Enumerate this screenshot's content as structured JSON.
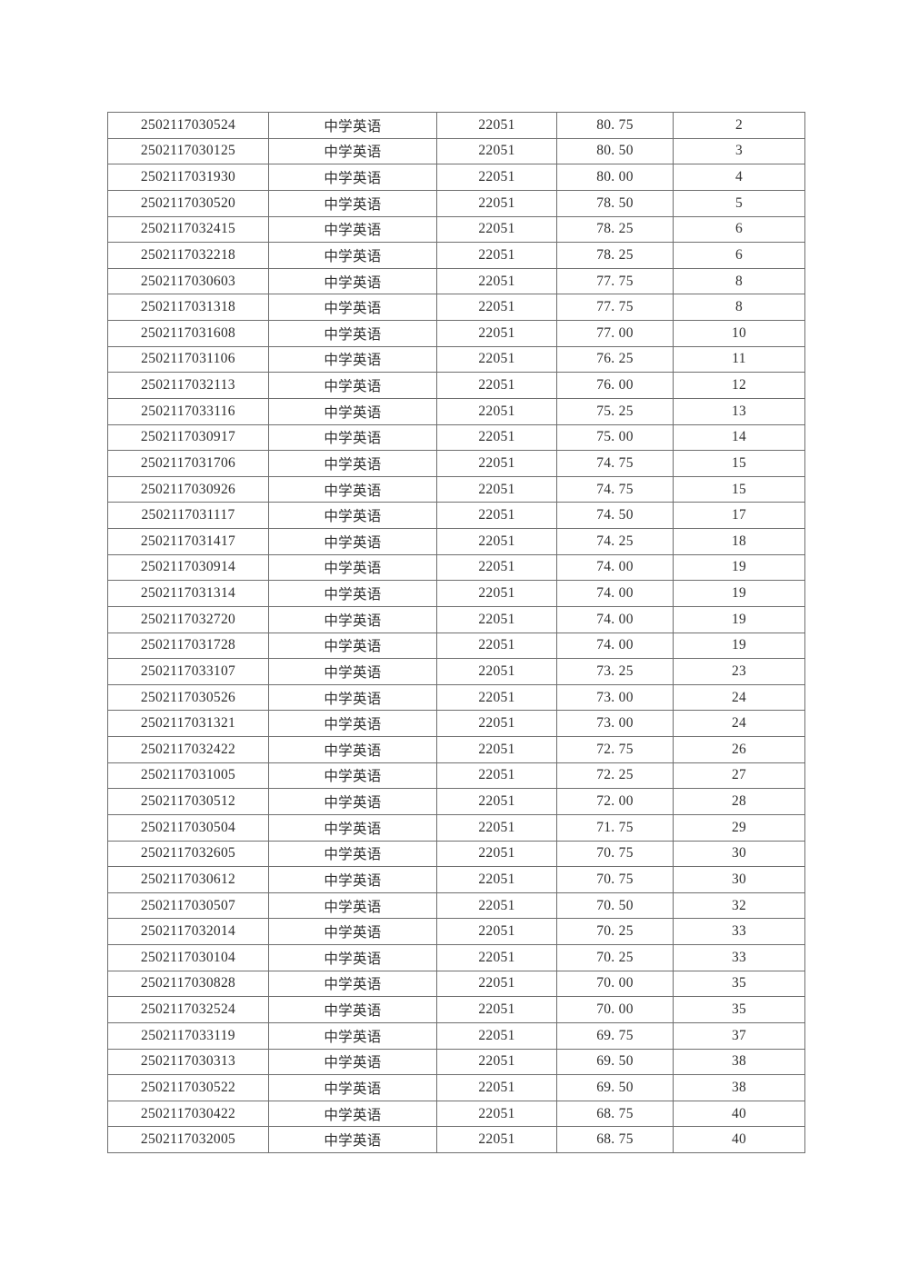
{
  "page": {
    "background_color": "#ffffff",
    "table_border_color": "#6e6e6e",
    "table_text_color": "#2e2e2e"
  },
  "table": {
    "rows": [
      {
        "id": "2502117030524",
        "subject": "中学英语",
        "code": "22051",
        "score": "80. 75",
        "rank": "2"
      },
      {
        "id": "2502117030125",
        "subject": "中学英语",
        "code": "22051",
        "score": "80. 50",
        "rank": "3"
      },
      {
        "id": "2502117031930",
        "subject": "中学英语",
        "code": "22051",
        "score": "80. 00",
        "rank": "4"
      },
      {
        "id": "2502117030520",
        "subject": "中学英语",
        "code": "22051",
        "score": "78. 50",
        "rank": "5"
      },
      {
        "id": "2502117032415",
        "subject": "中学英语",
        "code": "22051",
        "score": "78. 25",
        "rank": "6"
      },
      {
        "id": "2502117032218",
        "subject": "中学英语",
        "code": "22051",
        "score": "78. 25",
        "rank": "6"
      },
      {
        "id": "2502117030603",
        "subject": "中学英语",
        "code": "22051",
        "score": "77. 75",
        "rank": "8"
      },
      {
        "id": "2502117031318",
        "subject": "中学英语",
        "code": "22051",
        "score": "77. 75",
        "rank": "8"
      },
      {
        "id": "2502117031608",
        "subject": "中学英语",
        "code": "22051",
        "score": "77. 00",
        "rank": "10"
      },
      {
        "id": "2502117031106",
        "subject": "中学英语",
        "code": "22051",
        "score": "76. 25",
        "rank": "11"
      },
      {
        "id": "2502117032113",
        "subject": "中学英语",
        "code": "22051",
        "score": "76. 00",
        "rank": "12"
      },
      {
        "id": "2502117033116",
        "subject": "中学英语",
        "code": "22051",
        "score": "75. 25",
        "rank": "13"
      },
      {
        "id": "2502117030917",
        "subject": "中学英语",
        "code": "22051",
        "score": "75. 00",
        "rank": "14"
      },
      {
        "id": "2502117031706",
        "subject": "中学英语",
        "code": "22051",
        "score": "74. 75",
        "rank": "15"
      },
      {
        "id": "2502117030926",
        "subject": "中学英语",
        "code": "22051",
        "score": "74. 75",
        "rank": "15"
      },
      {
        "id": "2502117031117",
        "subject": "中学英语",
        "code": "22051",
        "score": "74. 50",
        "rank": "17"
      },
      {
        "id": "2502117031417",
        "subject": "中学英语",
        "code": "22051",
        "score": "74. 25",
        "rank": "18"
      },
      {
        "id": "2502117030914",
        "subject": "中学英语",
        "code": "22051",
        "score": "74. 00",
        "rank": "19"
      },
      {
        "id": "2502117031314",
        "subject": "中学英语",
        "code": "22051",
        "score": "74. 00",
        "rank": "19"
      },
      {
        "id": "2502117032720",
        "subject": "中学英语",
        "code": "22051",
        "score": "74. 00",
        "rank": "19"
      },
      {
        "id": "2502117031728",
        "subject": "中学英语",
        "code": "22051",
        "score": "74. 00",
        "rank": "19"
      },
      {
        "id": "2502117033107",
        "subject": "中学英语",
        "code": "22051",
        "score": "73. 25",
        "rank": "23"
      },
      {
        "id": "2502117030526",
        "subject": "中学英语",
        "code": "22051",
        "score": "73. 00",
        "rank": "24"
      },
      {
        "id": "2502117031321",
        "subject": "中学英语",
        "code": "22051",
        "score": "73. 00",
        "rank": "24"
      },
      {
        "id": "2502117032422",
        "subject": "中学英语",
        "code": "22051",
        "score": "72. 75",
        "rank": "26"
      },
      {
        "id": "2502117031005",
        "subject": "中学英语",
        "code": "22051",
        "score": "72. 25",
        "rank": "27"
      },
      {
        "id": "2502117030512",
        "subject": "中学英语",
        "code": "22051",
        "score": "72. 00",
        "rank": "28"
      },
      {
        "id": "2502117030504",
        "subject": "中学英语",
        "code": "22051",
        "score": "71. 75",
        "rank": "29"
      },
      {
        "id": "2502117032605",
        "subject": "中学英语",
        "code": "22051",
        "score": "70. 75",
        "rank": "30"
      },
      {
        "id": "2502117030612",
        "subject": "中学英语",
        "code": "22051",
        "score": "70. 75",
        "rank": "30"
      },
      {
        "id": "2502117030507",
        "subject": "中学英语",
        "code": "22051",
        "score": "70. 50",
        "rank": "32"
      },
      {
        "id": "2502117032014",
        "subject": "中学英语",
        "code": "22051",
        "score": "70. 25",
        "rank": "33"
      },
      {
        "id": "2502117030104",
        "subject": "中学英语",
        "code": "22051",
        "score": "70. 25",
        "rank": "33"
      },
      {
        "id": "2502117030828",
        "subject": "中学英语",
        "code": "22051",
        "score": "70. 00",
        "rank": "35"
      },
      {
        "id": "2502117032524",
        "subject": "中学英语",
        "code": "22051",
        "score": "70. 00",
        "rank": "35"
      },
      {
        "id": "2502117033119",
        "subject": "中学英语",
        "code": "22051",
        "score": "69. 75",
        "rank": "37"
      },
      {
        "id": "2502117030313",
        "subject": "中学英语",
        "code": "22051",
        "score": "69. 50",
        "rank": "38"
      },
      {
        "id": "2502117030522",
        "subject": "中学英语",
        "code": "22051",
        "score": "69. 50",
        "rank": "38"
      },
      {
        "id": "2502117030422",
        "subject": "中学英语",
        "code": "22051",
        "score": "68. 75",
        "rank": "40"
      },
      {
        "id": "2502117032005",
        "subject": "中学英语",
        "code": "22051",
        "score": "68. 75",
        "rank": "40"
      }
    ]
  }
}
